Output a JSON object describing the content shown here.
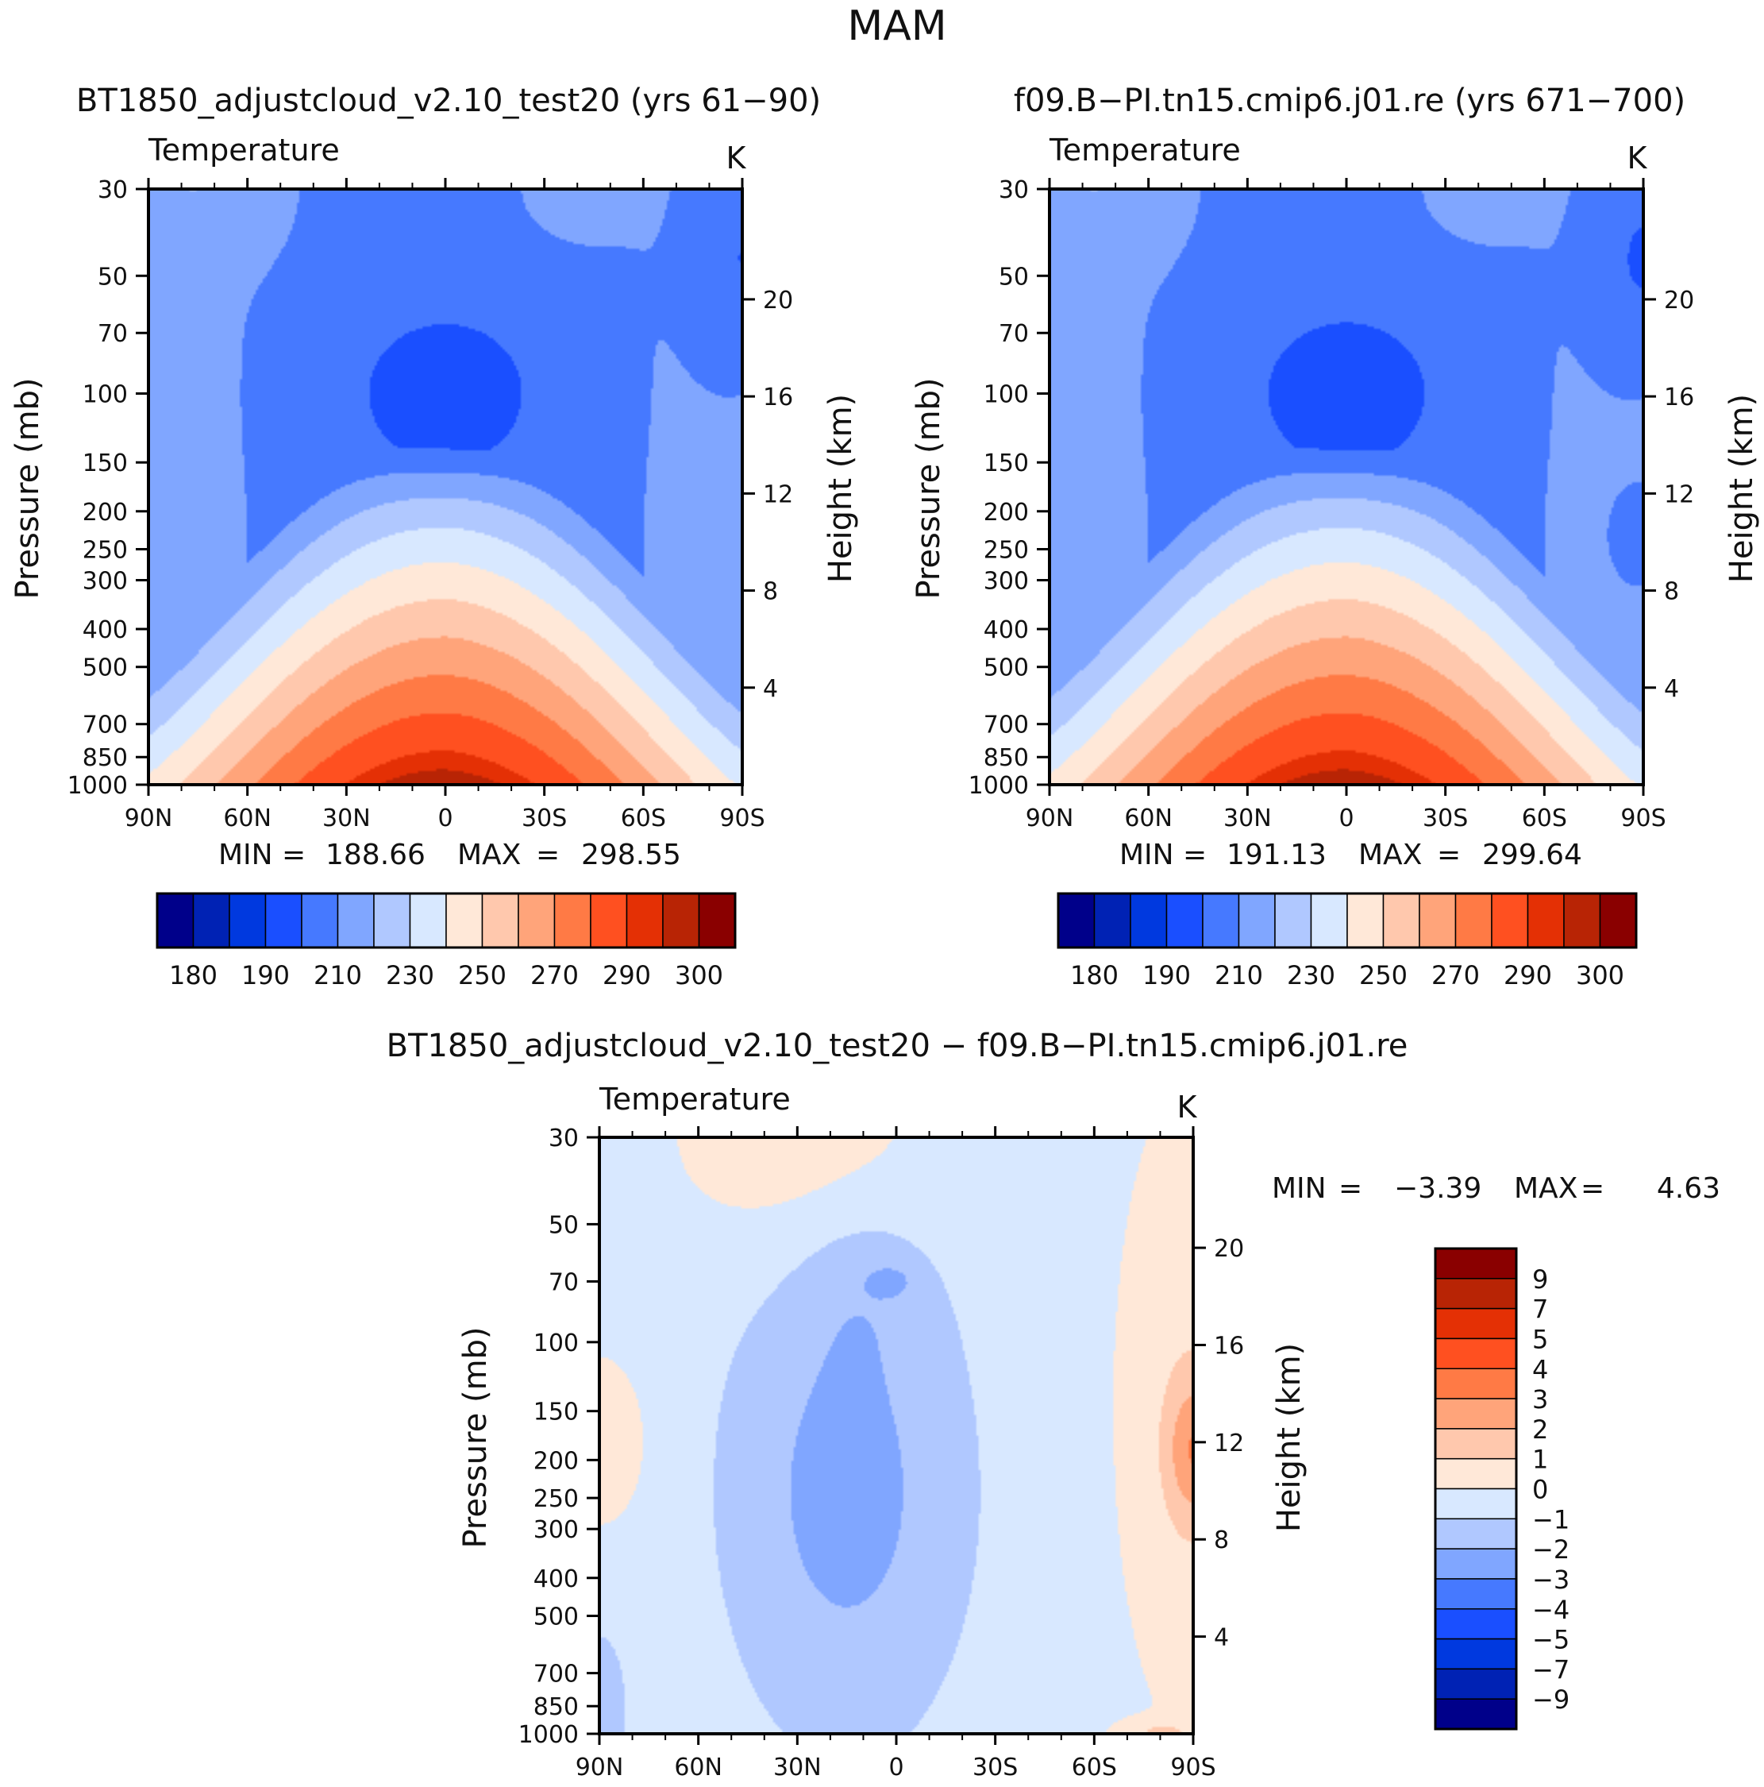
{
  "figure": {
    "title": "MAM"
  },
  "palette": {
    "abs": [
      "#00008a",
      "#0022b4",
      "#0039df",
      "#1a4fff",
      "#4679ff",
      "#80a6ff",
      "#b0c8ff",
      "#d8e8ff",
      "#ffe8d8",
      "#ffc8ad",
      "#ffa47a",
      "#ff7a45",
      "#ff5020",
      "#e43005",
      "#b82405",
      "#8a0000"
    ],
    "diff": [
      "#00008a",
      "#0022b4",
      "#0039df",
      "#1a4fff",
      "#4679ff",
      "#80a6ff",
      "#b0c8ff",
      "#d8e8ff",
      "#ffe8d8",
      "#ffc8ad",
      "#ffa47a",
      "#ff7a45",
      "#ff5020",
      "#e43005",
      "#b82405",
      "#8a0000"
    ]
  },
  "panels": [
    {
      "id": "top-left",
      "header": "BT1850_adjustcloud_v2.10_test20 (yrs 61−90)",
      "left_label": "Temperature",
      "right_label": "K",
      "ylabel": "Pressure (mb)",
      "y2label": "Height (km)",
      "stats": {
        "min_label": "MIN",
        "min": "188.66",
        "max_label": "MAX",
        "max": "298.55"
      },
      "colorbar_labels": [
        "180",
        "190",
        "210",
        "230",
        "250",
        "270",
        "290",
        "300"
      ]
    },
    {
      "id": "top-right",
      "header": "f09.B−PI.tn15.cmip6.j01.re (yrs 671−700)",
      "left_label": "Temperature",
      "right_label": "K",
      "ylabel": "Pressure (mb)",
      "y2label": "Height (km)",
      "stats": {
        "min_label": "MIN",
        "min": "191.13",
        "max_label": "MAX",
        "max": "299.64"
      },
      "colorbar_labels": [
        "180",
        "190",
        "210",
        "230",
        "250",
        "270",
        "290",
        "300"
      ]
    },
    {
      "id": "bottom",
      "header": "BT1850_adjustcloud_v2.10_test20 − f09.B−PI.tn15.cmip6.j01.re",
      "left_label": "Temperature",
      "right_label": "K",
      "ylabel": "Pressure (mb)",
      "y2label": "Height (km)",
      "stats": {
        "min_label": "MIN",
        "min": "−3.39",
        "max_label": "MAX",
        "max": "4.63"
      },
      "colorbar_labels": [
        "9",
        "7",
        "5",
        "4",
        "3",
        "2",
        "1",
        "0",
        "−1",
        "−2",
        "−3",
        "−4",
        "−5",
        "−7",
        "−9"
      ]
    }
  ],
  "chart_data": [
    {
      "type": "heatmap",
      "title": "BT1850_adjustcloud_v2.10_test20 (yrs 61−90)",
      "subtitle": "Temperature",
      "units": "K",
      "xlabel": "",
      "ylabel": "Pressure (mb)",
      "y2label": "Height (km)",
      "x_ticks": [
        "90N",
        "60N",
        "30N",
        "0",
        "30S",
        "60S",
        "90S"
      ],
      "y_ticks": [
        30,
        50,
        70,
        100,
        150,
        200,
        250,
        300,
        400,
        500,
        700,
        850,
        1000
      ],
      "y2_ticks": [
        4,
        8,
        12,
        16,
        20
      ],
      "levels": [
        180,
        185,
        190,
        200,
        210,
        220,
        230,
        240,
        250,
        260,
        270,
        280,
        290,
        295,
        300
      ],
      "min": 188.66,
      "max": 298.55
    },
    {
      "type": "heatmap",
      "title": "f09.B−PI.tn15.cmip6.j01.re (yrs 671−700)",
      "subtitle": "Temperature",
      "units": "K",
      "xlabel": "",
      "ylabel": "Pressure (mb)",
      "y2label": "Height (km)",
      "x_ticks": [
        "90N",
        "60N",
        "30N",
        "0",
        "30S",
        "60S",
        "90S"
      ],
      "y_ticks": [
        30,
        50,
        70,
        100,
        150,
        200,
        250,
        300,
        400,
        500,
        700,
        850,
        1000
      ],
      "y2_ticks": [
        4,
        8,
        12,
        16,
        20
      ],
      "levels": [
        180,
        185,
        190,
        200,
        210,
        220,
        230,
        240,
        250,
        260,
        270,
        280,
        290,
        295,
        300
      ],
      "min": 191.13,
      "max": 299.64
    },
    {
      "type": "heatmap",
      "title": "BT1850_adjustcloud_v2.10_test20 − f09.B−PI.tn15.cmip6.j01.re",
      "subtitle": "Temperature",
      "units": "K",
      "xlabel": "",
      "ylabel": "Pressure (mb)",
      "y2label": "Height (km)",
      "x_ticks": [
        "90N",
        "60N",
        "30N",
        "0",
        "30S",
        "60S",
        "90S"
      ],
      "y_ticks": [
        30,
        50,
        70,
        100,
        150,
        200,
        250,
        300,
        400,
        500,
        700,
        850,
        1000
      ],
      "y2_ticks": [
        4,
        8,
        12,
        16,
        20
      ],
      "levels": [
        -9,
        -7,
        -5,
        -4,
        -3,
        -2,
        -1,
        0,
        1,
        2,
        3,
        4,
        5,
        7,
        9
      ],
      "min": -3.39,
      "max": 4.63
    }
  ]
}
